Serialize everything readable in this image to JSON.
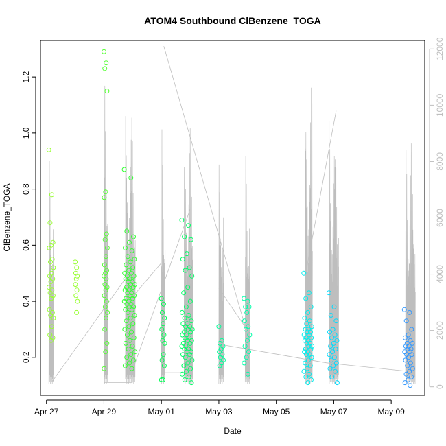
{
  "chart_data": {
    "type": "scatter",
    "title": "ATOM4 Southbound ClBenzene_TOGA",
    "xlabel": "Date",
    "ylabel": "ClBenzene_TOGA",
    "x_axis": {
      "type": "date",
      "range": [
        "2017-04-26T19:00",
        "2017-05-10T04:00"
      ],
      "ticks": [
        {
          "date": "2017-04-27",
          "label": "Apr 27"
        },
        {
          "date": "2017-04-29",
          "label": "Apr 29"
        },
        {
          "date": "2017-05-01",
          "label": "May 01"
        },
        {
          "date": "2017-05-03",
          "label": "May 03"
        },
        {
          "date": "2017-05-05",
          "label": "May 05"
        },
        {
          "date": "2017-05-07",
          "label": "May 07"
        },
        {
          "date": "2017-05-09",
          "label": "May 09"
        }
      ]
    },
    "y_axis": {
      "range": [
        0.065,
        1.33
      ],
      "ticks": [
        0.2,
        0.4,
        0.6,
        0.8,
        1.0,
        1.2
      ],
      "tick_labels": [
        "0.2",
        "0.4",
        "0.6",
        "0.8",
        "1.0",
        "1.2"
      ]
    },
    "y2_axis": {
      "position": "right",
      "color": "#bebebe",
      "range": [
        -300,
        12300
      ],
      "ticks": [
        0,
        2000,
        4000,
        6000,
        8000,
        10000,
        12000
      ],
      "tick_labels": [
        "0",
        "2000",
        "4000",
        "6000",
        "8000",
        "10000",
        "12000"
      ]
    },
    "grid": false,
    "legend": "none",
    "point_color_scale": [
      "#99ff33",
      "#00ff66",
      "#00ffcc",
      "#33ccff",
      "#0066ff"
    ],
    "line_color": "#bebebe",
    "clusters": [
      {
        "start": "2017-04-27T02:00",
        "end": "2017-04-27T06:00",
        "color": "#99ff33",
        "values": [
          0.94,
          0.78,
          0.68,
          0.61,
          0.6,
          0.59,
          0.55,
          0.54,
          0.52,
          0.5,
          0.49,
          0.48,
          0.47,
          0.45,
          0.44,
          0.43,
          0.42,
          0.41,
          0.37,
          0.36,
          0.35,
          0.34,
          0.31,
          0.28,
          0.27,
          0.26
        ]
      },
      {
        "start": "2017-04-28T00:00",
        "end": "2017-04-28T02:00",
        "color": "#99ff33",
        "values": [
          0.54,
          0.52,
          0.5,
          0.49,
          0.48,
          0.46,
          0.44,
          0.42,
          0.4,
          0.36
        ]
      },
      {
        "start": "2017-04-29T00:00",
        "end": "2017-04-29T03:00",
        "color": "#55ff33",
        "values": [
          1.29,
          1.25,
          1.23,
          1.15,
          0.79,
          0.77,
          0.64,
          0.62,
          0.59,
          0.56,
          0.53,
          0.51,
          0.5,
          0.49,
          0.48,
          0.46,
          0.45,
          0.44,
          0.42,
          0.4,
          0.38,
          0.36,
          0.34,
          0.3,
          0.25,
          0.22,
          0.16
        ]
      },
      {
        "start": "2017-04-29T17:00",
        "end": "2017-04-30T02:00",
        "color": "#33ff33",
        "values": [
          0.87,
          0.84,
          0.65,
          0.63,
          0.61,
          0.59,
          0.58,
          0.56,
          0.55,
          0.54,
          0.53,
          0.52,
          0.51,
          0.5,
          0.5,
          0.49,
          0.49,
          0.48,
          0.48,
          0.47,
          0.47,
          0.46,
          0.46,
          0.45,
          0.45,
          0.44,
          0.44,
          0.43,
          0.43,
          0.42,
          0.42,
          0.41,
          0.41,
          0.4,
          0.4,
          0.39,
          0.39,
          0.38,
          0.38,
          0.37,
          0.37,
          0.36,
          0.35,
          0.34,
          0.33,
          0.32,
          0.31,
          0.3,
          0.29,
          0.28,
          0.27,
          0.26,
          0.25,
          0.24,
          0.23,
          0.22,
          0.21,
          0.2,
          0.19,
          0.18,
          0.17,
          0.16
        ]
      },
      {
        "start": "2017-05-01T00:00",
        "end": "2017-05-01T03:00",
        "color": "#00ff55",
        "values": [
          0.41,
          0.39,
          0.36,
          0.34,
          0.32,
          0.3,
          0.28,
          0.26,
          0.25,
          0.21,
          0.19,
          0.17,
          0.12,
          0.12
        ]
      },
      {
        "start": "2017-05-01T17:00",
        "end": "2017-05-02T02:00",
        "color": "#00ff66",
        "values": [
          0.69,
          0.67,
          0.63,
          0.62,
          0.57,
          0.55,
          0.52,
          0.51,
          0.49,
          0.45,
          0.43,
          0.4,
          0.38,
          0.36,
          0.35,
          0.34,
          0.33,
          0.32,
          0.32,
          0.31,
          0.31,
          0.3,
          0.3,
          0.29,
          0.29,
          0.28,
          0.28,
          0.27,
          0.27,
          0.26,
          0.26,
          0.25,
          0.25,
          0.24,
          0.24,
          0.23,
          0.23,
          0.22,
          0.22,
          0.21,
          0.21,
          0.2,
          0.19,
          0.18,
          0.17,
          0.16,
          0.15,
          0.14,
          0.13,
          0.12,
          0.11
        ]
      },
      {
        "start": "2017-05-03T00:00",
        "end": "2017-05-03T04:00",
        "color": "#00ff99",
        "values": [
          0.31,
          0.26,
          0.25,
          0.24,
          0.23,
          0.22,
          0.21,
          0.2,
          0.19,
          0.18,
          0.17
        ]
      },
      {
        "start": "2017-05-03T21:00",
        "end": "2017-05-04T02:00",
        "color": "#00ffaa",
        "values": [
          0.41,
          0.4,
          0.38,
          0.38,
          0.36,
          0.33,
          0.31,
          0.3,
          0.28,
          0.26,
          0.24,
          0.22,
          0.2,
          0.18,
          0.14
        ]
      },
      {
        "start": "2017-05-05T23:00",
        "end": "2017-05-06T06:00",
        "color": "#00eeee",
        "values": [
          0.5,
          0.43,
          0.41,
          0.38,
          0.36,
          0.34,
          0.33,
          0.32,
          0.31,
          0.3,
          0.3,
          0.29,
          0.29,
          0.28,
          0.28,
          0.27,
          0.27,
          0.26,
          0.26,
          0.25,
          0.25,
          0.24,
          0.24,
          0.23,
          0.23,
          0.22,
          0.22,
          0.21,
          0.21,
          0.2,
          0.19,
          0.18,
          0.17,
          0.16,
          0.15,
          0.14,
          0.13,
          0.12,
          0.11
        ]
      },
      {
        "start": "2017-05-06T20:00",
        "end": "2017-05-07T03:00",
        "color": "#00ddff",
        "values": [
          0.43,
          0.38,
          0.35,
          0.33,
          0.3,
          0.29,
          0.28,
          0.27,
          0.26,
          0.25,
          0.24,
          0.23,
          0.22,
          0.21,
          0.2,
          0.19,
          0.18,
          0.17,
          0.16,
          0.15,
          0.13,
          0.11
        ]
      },
      {
        "start": "2017-05-09T11:00",
        "end": "2017-05-09T18:00",
        "color": "#3399ff",
        "values": [
          0.37,
          0.36,
          0.33,
          0.3,
          0.28,
          0.27,
          0.26,
          0.25,
          0.25,
          0.24,
          0.24,
          0.23,
          0.23,
          0.22,
          0.22,
          0.21,
          0.21,
          0.2,
          0.19,
          0.18,
          0.17,
          0.16,
          0.15,
          0.14,
          0.13,
          0.12,
          0.11,
          0.1
        ]
      }
    ],
    "line_series": [
      {
        "start": "2017-04-27T02:00",
        "end": "2017-04-27T06:00",
        "y2_max": 8200
      },
      {
        "start": "2017-04-29T00:00",
        "end": "2017-04-29T03:00",
        "y2_max": 11800
      },
      {
        "start": "2017-04-29T18:00",
        "end": "2017-04-30T02:00",
        "y2_max": 10200
      },
      {
        "start": "2017-05-01T00:00",
        "end": "2017-05-01T03:00",
        "y2_max": 9300
      },
      {
        "start": "2017-05-01T19:00",
        "end": "2017-05-02T02:00",
        "y2_max": 9200
      },
      {
        "start": "2017-05-03T00:00",
        "end": "2017-05-03T04:00",
        "y2_max": 8100
      },
      {
        "start": "2017-05-03T22:00",
        "end": "2017-05-04T02:00",
        "y2_max": 8400
      },
      {
        "start": "2017-05-06T00:00",
        "end": "2017-05-06T06:00",
        "y2_max": 10800
      },
      {
        "start": "2017-05-06T20:00",
        "end": "2017-05-07T04:00",
        "y2_max": 9500
      },
      {
        "start": "2017-05-09T12:00",
        "end": "2017-05-09T20:00",
        "y2_max": 8800
      }
    ],
    "line_connectors": [
      {
        "from": [
          "2017-04-27T02:00",
          5000
        ],
        "to": [
          "2017-04-28T00:00",
          5000
        ]
      },
      {
        "from": [
          "2017-04-28T00:00",
          5000
        ],
        "to": [
          "2017-04-28T00:00",
          150
        ]
      },
      {
        "from": [
          "2017-04-27T05:00",
          200
        ],
        "to": [
          "2017-04-30T00:00",
          4200
        ]
      },
      {
        "from": [
          "2017-04-29T00:00",
          150
        ],
        "to": [
          "2017-04-30T00:00",
          150
        ]
      },
      {
        "from": [
          "2017-04-30T00:00",
          600
        ],
        "to": [
          "2017-05-02T00:00",
          6300
        ]
      },
      {
        "from": [
          "2017-04-30T00:00",
          3200
        ],
        "to": [
          "2017-05-01T00:00",
          4400
        ]
      },
      {
        "from": [
          "2017-05-01T02:00",
          12100
        ],
        "to": [
          "2017-05-03T23:00",
          2000
        ]
      },
      {
        "from": [
          "2017-05-01T02:00",
          500
        ],
        "to": [
          "2017-05-02T00:00",
          500
        ]
      },
      {
        "from": [
          "2017-05-03T00:00",
          3500
        ],
        "to": [
          "2017-05-04T00:00",
          2000
        ]
      },
      {
        "from": [
          "2017-05-03T02:00",
          1500
        ],
        "to": [
          "2017-05-06T18:00",
          850
        ]
      },
      {
        "from": [
          "2017-05-06T18:00",
          850
        ],
        "to": [
          "2017-05-09T14:00",
          550
        ]
      },
      {
        "from": [
          "2017-05-06T00:00",
          3900
        ],
        "to": [
          "2017-05-07T02:00",
          9800
        ]
      }
    ]
  }
}
